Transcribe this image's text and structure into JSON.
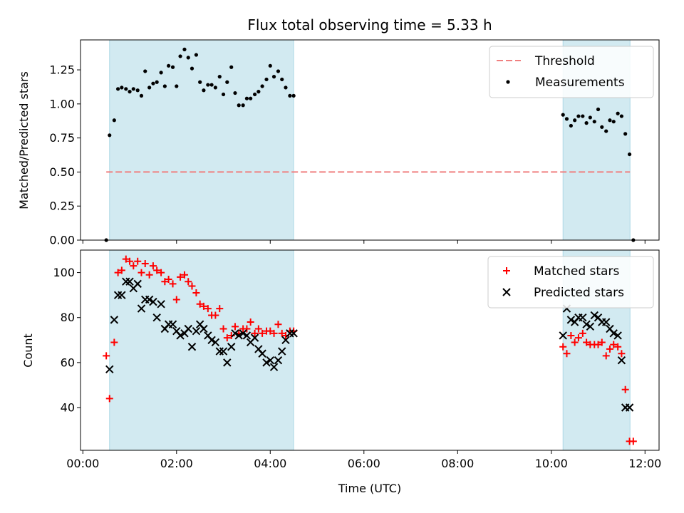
{
  "chart_data": [
    {
      "type": "scatter",
      "panel": "top",
      "title": "Flux total observing time = 5.33 h",
      "xlabel": "",
      "ylabel": "Matched/Predicted stars",
      "xlim_hours": [
        -0.05,
        12.3
      ],
      "ylim": [
        0,
        1.47
      ],
      "yticks": [
        0.0,
        0.25,
        0.5,
        0.75,
        1.0,
        1.25
      ],
      "ytick_labels": [
        "0.00",
        "0.25",
        "0.50",
        "0.75",
        "1.00",
        "1.25"
      ],
      "shaded_intervals_hours": [
        [
          0.57,
          4.5
        ],
        [
          10.25,
          11.68
        ]
      ],
      "shade_color": "#add8e6",
      "legend_position": "top-right",
      "threshold": {
        "name": "Threshold",
        "y": 0.5,
        "x_range_hours": [
          0.5,
          11.68
        ],
        "color": "#f08080"
      },
      "series": [
        {
          "name": "Measurements",
          "color": "#000000",
          "marker": "dot",
          "x_hours": [
            0.5,
            0.57,
            0.67,
            0.75,
            0.83,
            0.92,
            1.0,
            1.08,
            1.17,
            1.25,
            1.33,
            1.42,
            1.5,
            1.58,
            1.67,
            1.75,
            1.83,
            1.92,
            2.0,
            2.08,
            2.17,
            2.25,
            2.33,
            2.42,
            2.5,
            2.58,
            2.67,
            2.75,
            2.83,
            2.92,
            3.0,
            3.08,
            3.17,
            3.25,
            3.33,
            3.42,
            3.5,
            3.58,
            3.67,
            3.75,
            3.83,
            3.92,
            4.0,
            4.08,
            4.17,
            4.25,
            4.33,
            4.42,
            4.5,
            10.25,
            10.33,
            10.42,
            10.5,
            10.58,
            10.67,
            10.75,
            10.83,
            10.92,
            11.0,
            11.08,
            11.17,
            11.25,
            11.33,
            11.42,
            11.5,
            11.58,
            11.67,
            11.75
          ],
          "y": [
            0.0,
            0.77,
            0.88,
            1.11,
            1.12,
            1.11,
            1.09,
            1.11,
            1.1,
            1.06,
            1.24,
            1.12,
            1.15,
            1.16,
            1.23,
            1.13,
            1.28,
            1.27,
            1.13,
            1.35,
            1.4,
            1.34,
            1.26,
            1.36,
            1.16,
            1.1,
            1.14,
            1.14,
            1.12,
            1.2,
            1.07,
            1.16,
            1.27,
            1.08,
            0.99,
            0.99,
            1.04,
            1.04,
            1.07,
            1.09,
            1.13,
            1.18,
            1.28,
            1.2,
            1.24,
            1.18,
            1.12,
            1.06,
            1.06,
            0.92,
            0.89,
            0.84,
            0.88,
            0.91,
            0.91,
            0.86,
            0.9,
            0.87,
            0.96,
            0.83,
            0.8,
            0.88,
            0.87,
            0.93,
            0.91,
            0.78,
            0.63,
            0.0
          ]
        }
      ]
    },
    {
      "type": "scatter",
      "panel": "bottom",
      "title": "",
      "xlabel": "Time (UTC)",
      "ylabel": "Count",
      "xlim_hours": [
        -0.05,
        12.3
      ],
      "xticks_hours": [
        0,
        2,
        4,
        6,
        8,
        10,
        12
      ],
      "xtick_labels": [
        "00:00",
        "02:00",
        "04:00",
        "06:00",
        "08:00",
        "10:00",
        "12:00"
      ],
      "ylim": [
        21,
        110
      ],
      "yticks": [
        40,
        60,
        80,
        100
      ],
      "ytick_labels": [
        "40",
        "60",
        "80",
        "100"
      ],
      "shaded_intervals_hours": [
        [
          0.57,
          4.5
        ],
        [
          10.25,
          11.68
        ]
      ],
      "shade_color": "#add8e6",
      "legend_position": "top-right",
      "series": [
        {
          "name": "Matched stars",
          "color": "#ff0000",
          "marker": "plus",
          "x_hours": [
            0.5,
            0.57,
            0.67,
            0.75,
            0.83,
            0.92,
            1.0,
            1.08,
            1.17,
            1.25,
            1.33,
            1.42,
            1.5,
            1.58,
            1.67,
            1.75,
            1.83,
            1.92,
            2.0,
            2.08,
            2.17,
            2.25,
            2.33,
            2.42,
            2.5,
            2.58,
            2.67,
            2.75,
            2.83,
            2.92,
            3.0,
            3.08,
            3.17,
            3.25,
            3.33,
            3.42,
            3.5,
            3.58,
            3.67,
            3.75,
            3.83,
            3.92,
            4.0,
            4.08,
            4.17,
            4.25,
            4.33,
            4.42,
            4.5,
            10.25,
            10.33,
            10.42,
            10.5,
            10.58,
            10.67,
            10.75,
            10.83,
            10.92,
            11.0,
            11.08,
            11.17,
            11.25,
            11.33,
            11.42,
            11.5,
            11.58,
            11.67,
            11.75
          ],
          "y": [
            63,
            44,
            69,
            100,
            101,
            106,
            105,
            103,
            105,
            100,
            104,
            99,
            103,
            101,
            100,
            96,
            97,
            95,
            88,
            98,
            99,
            96,
            94,
            91,
            86,
            85,
            84,
            81,
            81,
            84,
            75,
            71,
            72,
            76,
            73,
            75,
            75,
            78,
            73,
            75,
            73,
            74,
            74,
            73,
            77,
            73,
            72,
            74,
            74,
            67,
            64,
            72,
            69,
            71,
            73,
            69,
            68,
            68,
            68,
            69,
            63,
            66,
            68,
            67,
            64,
            48,
            25,
            25
          ]
        },
        {
          "name": "Predicted stars",
          "color": "#000000",
          "marker": "x",
          "x_hours": [
            0.57,
            0.67,
            0.75,
            0.83,
            0.92,
            1.0,
            1.08,
            1.17,
            1.25,
            1.33,
            1.42,
            1.5,
            1.58,
            1.67,
            1.75,
            1.83,
            1.92,
            2.0,
            2.08,
            2.17,
            2.25,
            2.33,
            2.42,
            2.5,
            2.58,
            2.67,
            2.75,
            2.83,
            2.92,
            3.0,
            3.08,
            3.17,
            3.25,
            3.33,
            3.42,
            3.5,
            3.58,
            3.67,
            3.75,
            3.83,
            3.92,
            4.0,
            4.08,
            4.17,
            4.25,
            4.33,
            4.42,
            4.5,
            10.25,
            10.33,
            10.42,
            10.5,
            10.58,
            10.67,
            10.75,
            10.83,
            10.92,
            11.0,
            11.08,
            11.17,
            11.25,
            11.33,
            11.42,
            11.5,
            11.58,
            11.67
          ],
          "y": [
            57,
            79,
            90,
            90,
            96,
            96,
            93,
            95,
            84,
            88,
            88,
            87,
            80,
            86,
            75,
            77,
            77,
            74,
            72,
            73,
            75,
            67,
            74,
            77,
            75,
            72,
            70,
            69,
            65,
            65,
            60,
            67,
            73,
            72,
            73,
            72,
            69,
            71,
            66,
            64,
            60,
            61,
            58,
            61,
            65,
            70,
            73,
            73,
            72,
            84,
            79,
            78,
            80,
            80,
            77,
            76,
            81,
            80,
            78,
            78,
            75,
            73,
            72,
            61,
            40,
            40
          ]
        }
      ]
    }
  ]
}
